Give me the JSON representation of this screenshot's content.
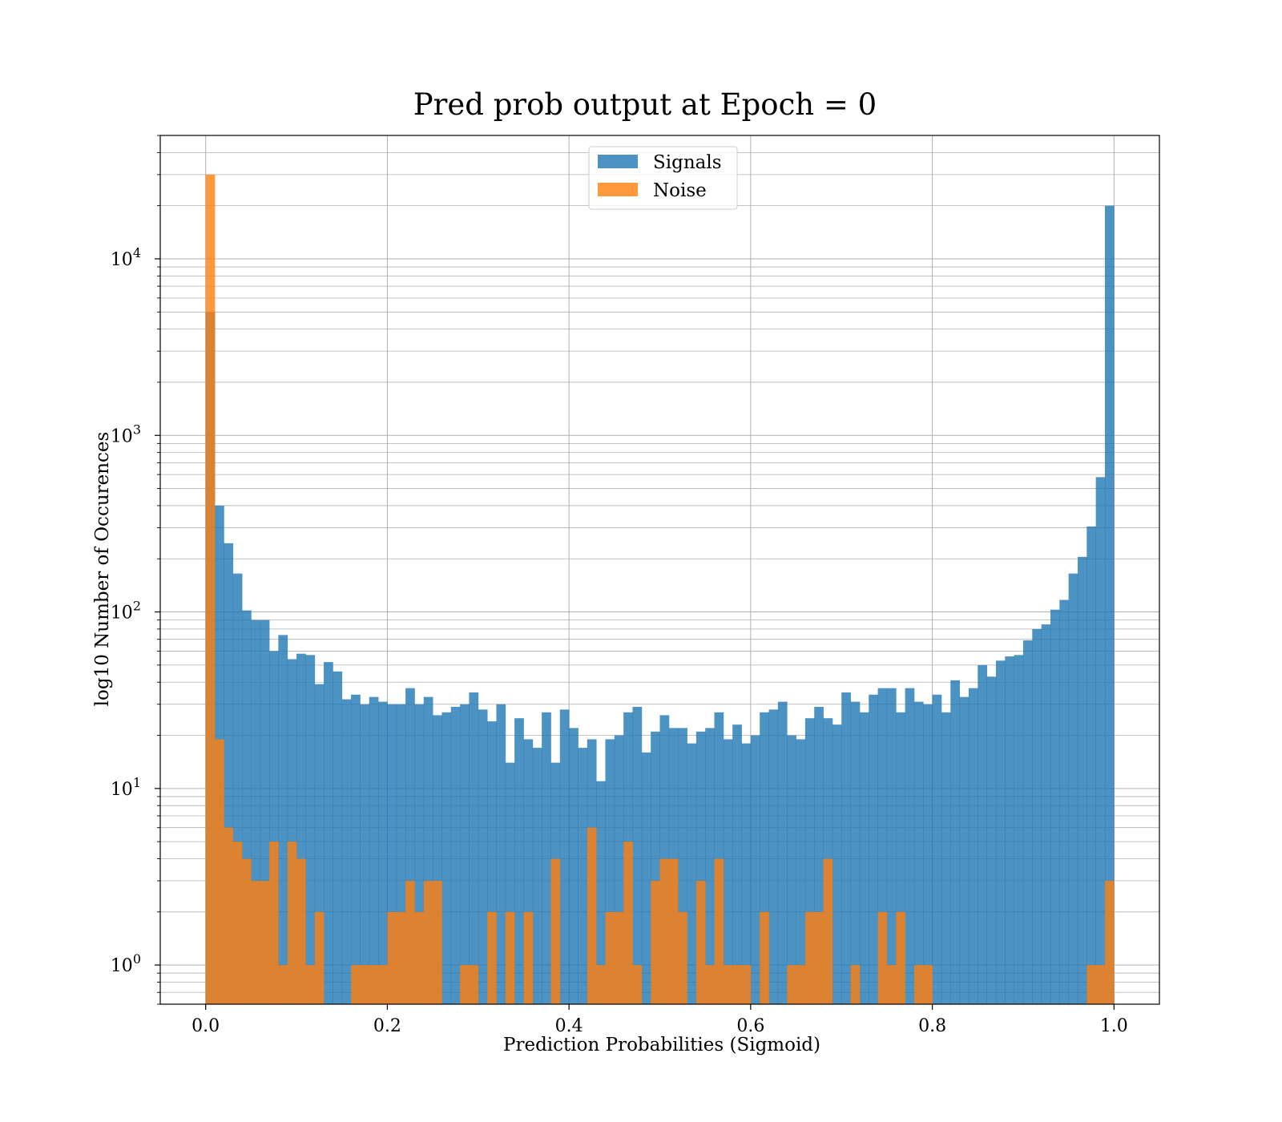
{
  "chart_data": {
    "type": "bar",
    "title": "Pred prob output at Epoch = 0",
    "xlabel": "Prediction Probabilities (Sigmoid)",
    "ylabel": "log10 Number of Occurences",
    "xlim": [
      -0.05,
      1.05
    ],
    "ylim": [
      0.6,
      50000
    ],
    "yscale": "log",
    "x_ticks": [
      0.0,
      0.2,
      0.4,
      0.6,
      0.8,
      1.0
    ],
    "x_tick_labels": [
      "0.0",
      "0.2",
      "0.4",
      "0.6",
      "0.8",
      "1.0"
    ],
    "y_tick_bases": [
      "10",
      "10",
      "10",
      "10",
      "10"
    ],
    "y_tick_exponents": [
      "0",
      "1",
      "2",
      "3",
      "4"
    ],
    "y_tick_values": [
      1,
      10,
      100,
      1000,
      10000
    ],
    "grid": true,
    "legend_position": "top-center",
    "bin_start": 0.0,
    "bin_width": 0.01,
    "series": [
      {
        "name": "Signals",
        "color": "#1f77b4",
        "opacity": 0.8,
        "values": [
          5000,
          400,
          245,
          165,
          102,
          90,
          90,
          60,
          74,
          54,
          58,
          57,
          39,
          52,
          46,
          32,
          34,
          30,
          33,
          31,
          30,
          30,
          37,
          30,
          33,
          26,
          27,
          29,
          30,
          35,
          28,
          24,
          30,
          14,
          25,
          19,
          17,
          27,
          14,
          28,
          22,
          17,
          19,
          11,
          19,
          20,
          27,
          29,
          16,
          21,
          26,
          22,
          22,
          18,
          21,
          22,
          27,
          19,
          23,
          18,
          20,
          27,
          28,
          31,
          20,
          19,
          25,
          29,
          25,
          23,
          35,
          31,
          27,
          34,
          37,
          37,
          27,
          37,
          31,
          30,
          34,
          27,
          41,
          33,
          37,
          50,
          43,
          53,
          56,
          57,
          69,
          80,
          85,
          103,
          117,
          165,
          205,
          305,
          580,
          20000
        ]
      },
      {
        "name": "Noise",
        "color": "#ff7f0e",
        "opacity": 0.8,
        "values": [
          30000,
          19,
          6,
          5,
          4,
          3,
          3,
          5,
          1,
          5,
          4,
          1,
          2,
          0,
          0,
          0,
          1,
          1,
          1,
          1,
          2,
          2,
          3,
          2,
          3,
          3,
          0,
          0,
          1,
          1,
          0,
          2,
          0,
          2,
          0,
          2,
          0,
          0,
          4,
          0,
          0,
          0,
          6,
          1,
          2,
          2,
          5,
          1,
          0,
          3,
          4,
          4,
          2,
          0,
          3,
          1,
          4,
          1,
          1,
          1,
          0,
          2,
          0,
          0,
          1,
          1,
          2,
          2,
          4,
          0,
          0,
          1,
          0,
          0,
          2,
          1,
          2,
          0,
          1,
          1,
          0,
          0,
          0,
          0,
          0,
          0,
          0,
          0,
          0,
          0,
          0,
          0,
          0,
          0,
          0,
          0,
          0,
          1,
          1,
          3
        ]
      }
    ]
  }
}
